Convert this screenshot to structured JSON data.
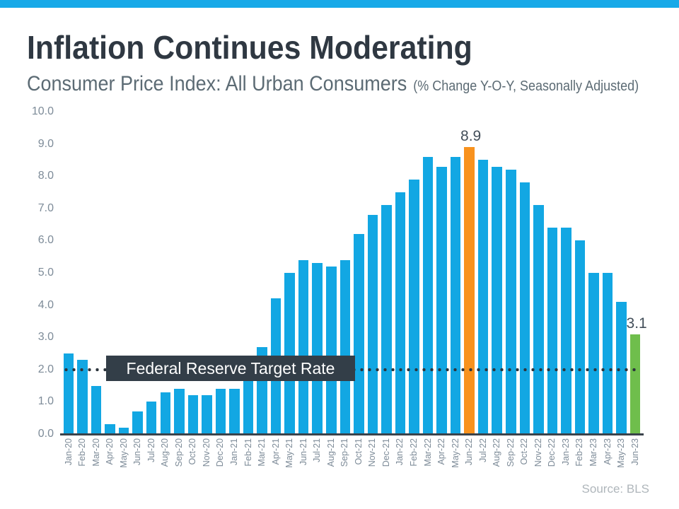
{
  "banner": {
    "color": "#17A9E8"
  },
  "header": {
    "title": "Inflation Continues Moderating",
    "subtitle": "Consumer Price Index: All Urban Consumers",
    "subtitle_note": "(% Change Y-O-Y, Seasonally Adjusted)"
  },
  "chart_data": {
    "type": "bar",
    "title": "Consumer Price Index: All Urban Consumers",
    "units_note": "% Change Y-O-Y, Seasonally Adjusted",
    "categories": [
      "Jan-20",
      "Feb-20",
      "Mar-20",
      "Apr-20",
      "May-20",
      "Jun-20",
      "Jul-20",
      "Aug-20",
      "Sep-20",
      "Oct-20",
      "Nov-20",
      "Dec-20",
      "Jan-21",
      "Feb-21",
      "Mar-21",
      "Apr-21",
      "May-21",
      "Jun-21",
      "Jul-21",
      "Aug-21",
      "Sep-21",
      "Oct-21",
      "Nov-21",
      "Dec-21",
      "Jan-22",
      "Feb-22",
      "Mar-22",
      "Apr-22",
      "May-22",
      "Jun-22",
      "Jul-22",
      "Aug-22",
      "Sep-22",
      "Oct-22",
      "Nov-22",
      "Dec-22",
      "Jan-23",
      "Feb-23",
      "Mar-23",
      "Apr-23",
      "May-23",
      "Jun-23"
    ],
    "values": [
      2.5,
      2.3,
      1.5,
      0.3,
      0.2,
      0.7,
      1.0,
      1.3,
      1.4,
      1.2,
      1.2,
      1.4,
      1.4,
      1.7,
      2.7,
      4.2,
      5.0,
      5.4,
      5.3,
      5.2,
      5.4,
      6.2,
      6.8,
      7.1,
      7.5,
      7.9,
      8.6,
      8.3,
      8.6,
      8.9,
      8.5,
      8.3,
      8.2,
      7.8,
      7.1,
      6.4,
      6.4,
      6.0,
      5.0,
      5.0,
      4.1,
      3.1
    ],
    "ylim": [
      0,
      10
    ],
    "ytick_labels": [
      "10.0",
      "9.0",
      "8.0",
      "7.0",
      "6.0",
      "5.0",
      "4.0",
      "3.0",
      "2.0",
      "1.0",
      "0.0"
    ],
    "grid": false,
    "legend": "none",
    "bar_color": "#12A7E3",
    "highlights": [
      {
        "category": "Jun-22",
        "index": 29,
        "color": "#F8921E",
        "label": "8.9"
      },
      {
        "category": "Jun-23",
        "index": 41,
        "color": "#6FBE4C",
        "label": "3.1"
      }
    ],
    "target_line": {
      "value": 2.0,
      "label": "Federal Reserve Target Rate",
      "style": "dotted",
      "line_color": "#2C353D",
      "label_bg": "#333E48",
      "label_color": "#FFFFFF"
    }
  },
  "source": {
    "text": "Source: BLS"
  }
}
